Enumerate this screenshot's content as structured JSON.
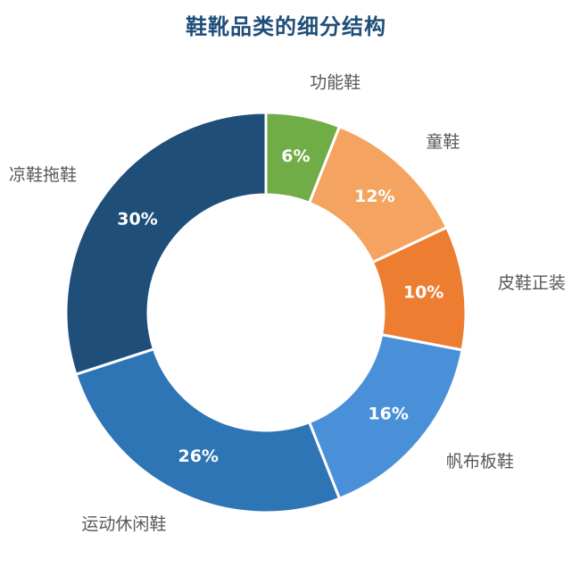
{
  "chart_data": {
    "type": "pie",
    "title": "鞋靴品类的细分结构",
    "donut": true,
    "categories": [
      "功能鞋",
      "童鞋",
      "皮鞋正装",
      "帆布板鞋",
      "运动休闲鞋",
      "凉鞋拖鞋"
    ],
    "values": [
      6,
      12,
      10,
      16,
      26,
      30
    ],
    "labels": [
      "6%",
      "12%",
      "10%",
      "16%",
      "26%",
      "30%"
    ],
    "colors": [
      "#70ad47",
      "#f4a460",
      "#ed7d31",
      "#4a90d9",
      "#2e75b6",
      "#1f4e79"
    ],
    "legend": "none"
  }
}
